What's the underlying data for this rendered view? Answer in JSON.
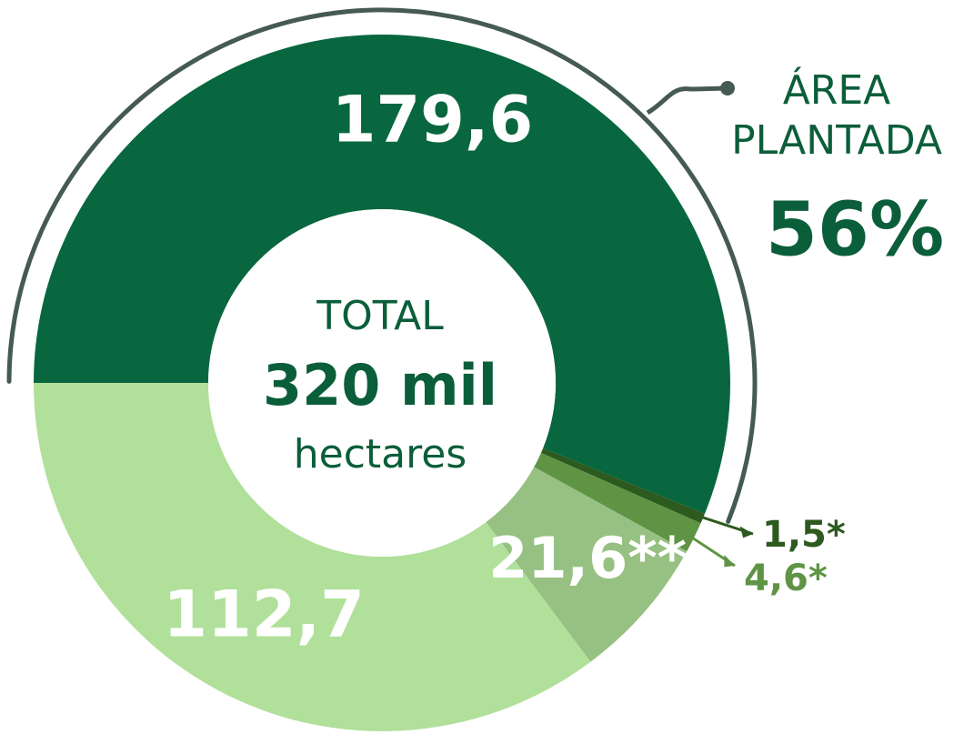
{
  "chart_data": {
    "type": "donut",
    "values": [
      179.6,
      1.5,
      4.6,
      21.6,
      112.7
    ],
    "value_labels": [
      "179,6",
      "1,5*",
      "4,6*",
      "21,6**",
      "112,7"
    ],
    "colors": [
      "#08673f",
      "#2d5a1e",
      "#5e9444",
      "#97c182",
      "#b0e09a"
    ],
    "center": {
      "line1": "TOTAL",
      "line2": "320 mil",
      "line3": "hectares"
    },
    "annotation": {
      "text": [
        "ÁREA",
        "PLANTADA"
      ],
      "value": 56,
      "value_label": "56%"
    }
  }
}
